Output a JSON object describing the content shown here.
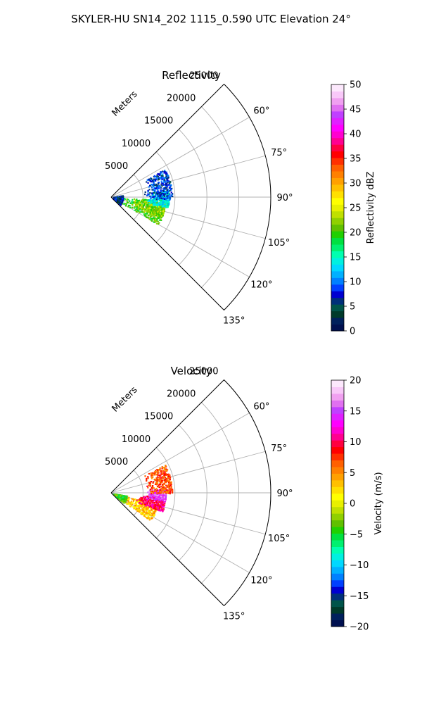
{
  "suptitle": "SKYLER-HU  SN14_202  1115_0.590 UTC Elevation 24°",
  "chart_data": [
    {
      "type": "ppi-sector",
      "title": "Reflectivity",
      "radial_label": "Meters",
      "range_ticks": [
        5000,
        10000,
        15000,
        20000,
        25000
      ],
      "range_tick_labels": [
        "5000",
        "10000",
        "15000",
        "20000",
        "25000"
      ],
      "rmax": 25000,
      "azimuth_range_deg": [
        45,
        135
      ],
      "azimuth_ticks": [
        60,
        75,
        90,
        105,
        120,
        135
      ],
      "azimuth_tick_labels": [
        "60°",
        "75°",
        "90°",
        "105°",
        "120°",
        "135°"
      ],
      "colorbar": {
        "label": "Reflectivity dBZ",
        "range": [
          0,
          50
        ],
        "ticks": [
          0,
          5,
          10,
          15,
          20,
          25,
          30,
          35,
          40,
          45,
          50
        ],
        "tick_labels": [
          "0",
          "5",
          "10",
          "15",
          "20",
          "25",
          "30",
          "35",
          "40",
          "45",
          "50"
        ],
        "colors": [
          "#001050",
          "#00205c",
          "#003a2a",
          "#00544a",
          "#00307a",
          "#0000d0",
          "#0040ff",
          "#0080ff",
          "#00b0ff",
          "#00d8ff",
          "#00f0e0",
          "#00ffb0",
          "#00f070",
          "#00e040",
          "#20d000",
          "#60c000",
          "#90d000",
          "#c0e000",
          "#e8f000",
          "#ffff00",
          "#ffe000",
          "#ffc000",
          "#ffa000",
          "#ff8000",
          "#ff6000",
          "#ff3000",
          "#ff0000",
          "#ff0040",
          "#ff0090",
          "#ff00d0",
          "#ff00ff",
          "#e020ff",
          "#c040ff",
          "#e070f0",
          "#f0a0f0",
          "#f8c8f8",
          "#fce8fc"
        ]
      },
      "echo_clusters": [
        {
          "value": 20,
          "az": [
            93,
            120
          ],
          "r": [
            1200,
            8500
          ]
        },
        {
          "value": 22,
          "az": [
            96,
            112
          ],
          "r": [
            3500,
            8500
          ]
        },
        {
          "value": 14,
          "az": [
            83,
            100
          ],
          "r": [
            5500,
            9000
          ]
        },
        {
          "value": 8,
          "az": [
            62,
            92
          ],
          "r": [
            5000,
            9500
          ]
        },
        {
          "value": 6,
          "az": [
            80,
            130
          ],
          "r": [
            200,
            1800
          ]
        }
      ]
    },
    {
      "type": "ppi-sector",
      "title": "Velocity",
      "radial_label": "Meters",
      "range_ticks": [
        5000,
        10000,
        15000,
        20000,
        25000
      ],
      "range_tick_labels": [
        "5000",
        "10000",
        "15000",
        "20000",
        "25000"
      ],
      "rmax": 25000,
      "azimuth_range_deg": [
        45,
        135
      ],
      "azimuth_ticks": [
        60,
        75,
        90,
        105,
        120,
        135
      ],
      "azimuth_tick_labels": [
        "60°",
        "75°",
        "90°",
        "105°",
        "120°",
        "135°"
      ],
      "colorbar": {
        "label": "Velocity (m/s)",
        "range": [
          -20,
          20
        ],
        "ticks": [
          -20,
          -15,
          -10,
          -5,
          0,
          5,
          10,
          15,
          20
        ],
        "tick_labels": [
          "−20",
          "−15",
          "−10",
          "−5",
          "0",
          "5",
          "10",
          "15",
          "20"
        ],
        "colors": [
          "#001050",
          "#00205c",
          "#003a2a",
          "#00544a",
          "#00307a",
          "#0000d0",
          "#0040ff",
          "#0080ff",
          "#00b0ff",
          "#00d8ff",
          "#00f0e0",
          "#00ffb0",
          "#00f070",
          "#00e040",
          "#20d000",
          "#60c000",
          "#90d000",
          "#c0e000",
          "#e8f000",
          "#ffff00",
          "#ffe000",
          "#ffc000",
          "#ffa000",
          "#ff8000",
          "#ff6000",
          "#ff3000",
          "#ff0000",
          "#ff0040",
          "#ff0090",
          "#ff00d0",
          "#ff00ff",
          "#e020ff",
          "#c040ff",
          "#e070f0",
          "#f0a0f0",
          "#f8c8f8",
          "#fce8fc"
        ]
      },
      "echo_clusters": [
        {
          "value": 3,
          "az": [
            103,
            125
          ],
          "r": [
            1500,
            7500
          ]
        },
        {
          "value": 10,
          "az": [
            94,
            110
          ],
          "r": [
            4000,
            8500
          ]
        },
        {
          "value": 15,
          "az": [
            85,
            98
          ],
          "r": [
            5500,
            8500
          ]
        },
        {
          "value": 7,
          "az": [
            62,
            90
          ],
          "r": [
            5500,
            9500
          ]
        },
        {
          "value": -4,
          "az": [
            100,
            128
          ],
          "r": [
            200,
            2500
          ]
        }
      ]
    }
  ]
}
